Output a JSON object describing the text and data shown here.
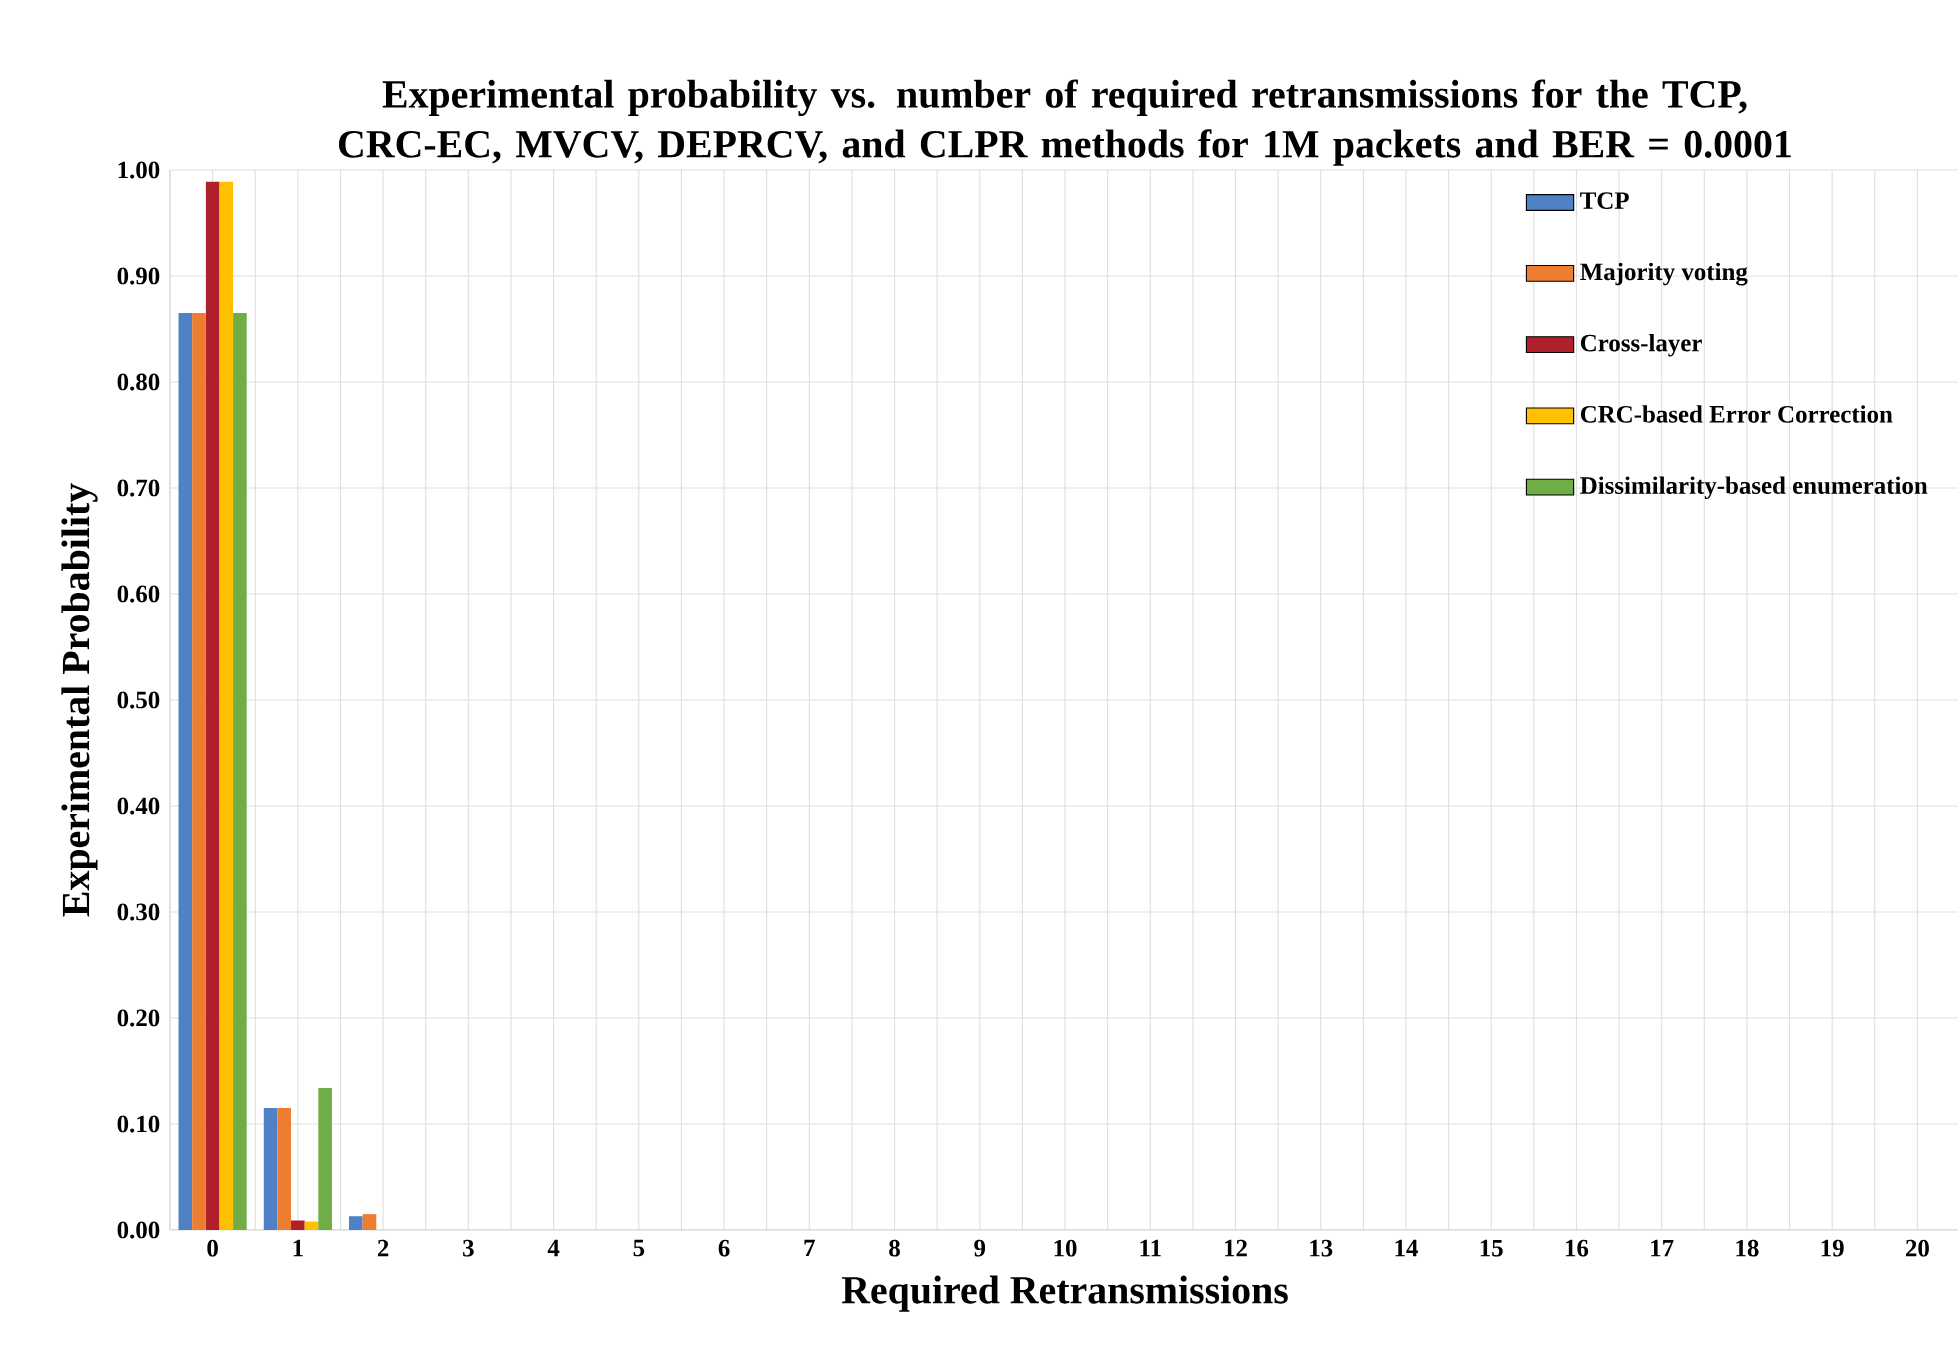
{
  "chart_data": {
    "type": "bar",
    "title": "Experimental probability vs. number of required retransmissions for the TCP, CRC-EC, MVCV, DEPRCV, and CLPR methods for 1M packets and BER = 0.0001",
    "xlabel": "Required Retransmissions",
    "ylabel": "Experimental Probability",
    "categories": [
      "0",
      "1",
      "2",
      "3",
      "4",
      "5",
      "6",
      "7",
      "8",
      "9",
      "10",
      "11",
      "12",
      "13",
      "14",
      "15",
      "16",
      "17",
      "18",
      "19",
      "20"
    ],
    "series": [
      {
        "name": "TCP",
        "color": "#4f81c7",
        "values": [
          0.865,
          0.115,
          0.013,
          0,
          0,
          0,
          0,
          0,
          0,
          0,
          0,
          0,
          0,
          0,
          0,
          0,
          0,
          0,
          0,
          0,
          0
        ]
      },
      {
        "name": "Majority voting",
        "color": "#ed7d31",
        "values": [
          0.865,
          0.115,
          0.015,
          0,
          0,
          0,
          0,
          0,
          0,
          0,
          0,
          0,
          0,
          0,
          0,
          0,
          0,
          0,
          0,
          0,
          0
        ]
      },
      {
        "name": "Cross-layer",
        "color": "#b0202a",
        "values": [
          0.989,
          0.009,
          0,
          0,
          0,
          0,
          0,
          0,
          0,
          0,
          0,
          0,
          0,
          0,
          0,
          0,
          0,
          0,
          0,
          0,
          0
        ]
      },
      {
        "name": "CRC-based Error Correction",
        "color": "#ffc000",
        "values": [
          0.989,
          0.008,
          0,
          0,
          0,
          0,
          0,
          0,
          0,
          0,
          0,
          0,
          0,
          0,
          0,
          0,
          0,
          0,
          0,
          0,
          0
        ]
      },
      {
        "name": "Dissimilarity-based enumeration",
        "color": "#70ad47",
        "values": [
          0.865,
          0.134,
          0,
          0,
          0,
          0,
          0,
          0,
          0,
          0,
          0,
          0,
          0,
          0,
          0,
          0,
          0,
          0,
          0,
          0,
          0
        ]
      }
    ],
    "ylim": [
      0,
      1
    ],
    "yticks": [
      {
        "value": 0,
        "label": "0.00"
      },
      {
        "value": 0.1,
        "label": "0.10"
      },
      {
        "value": 0.2,
        "label": "0.20"
      },
      {
        "value": 0.3,
        "label": "0.30"
      },
      {
        "value": 0.4,
        "label": "0.40"
      },
      {
        "value": 0.5,
        "label": "0.50"
      },
      {
        "value": 0.6,
        "label": "0.60"
      },
      {
        "value": 0.7,
        "label": "0.70"
      },
      {
        "value": 0.8,
        "label": "0.80"
      },
      {
        "value": 0.9,
        "label": "0.90"
      },
      {
        "value": 1,
        "label": "1.00"
      }
    ],
    "grid": true,
    "legend": "top right"
  }
}
